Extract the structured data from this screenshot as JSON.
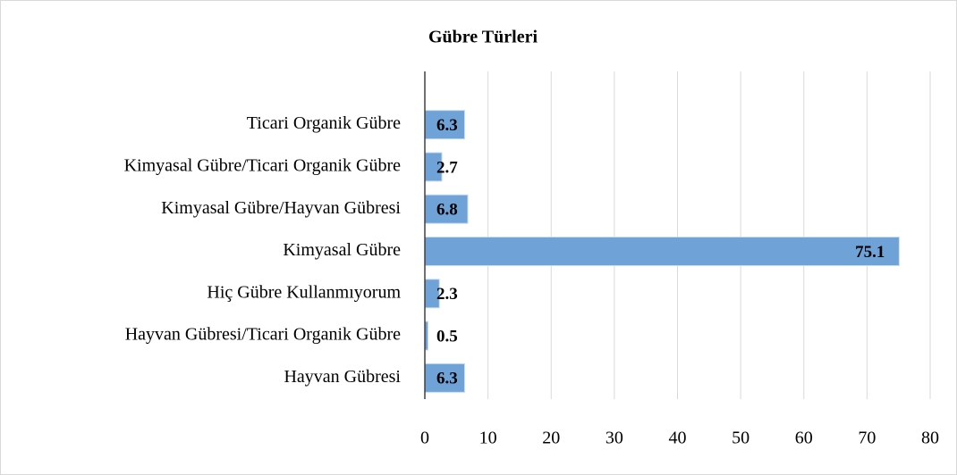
{
  "chart_data": {
    "type": "bar",
    "orientation": "horizontal",
    "title": "Gübre Türleri",
    "categories": [
      "Ticari Organik Gübre",
      "Kimyasal Gübre/Ticari Organik Gübre",
      "Kimyasal Gübre/Hayvan Gübresi",
      "Kimyasal Gübre",
      "Hiç Gübre Kullanmıyorum",
      "Hayvan Gübresi/Ticari Organik Gübre",
      "Hayvan Gübresi"
    ],
    "values": [
      6.3,
      2.7,
      6.8,
      75.1,
      2.3,
      0.5,
      6.3
    ],
    "color": "#6fa3d8",
    "xlim": [
      0,
      80
    ],
    "xticks": [
      0,
      10,
      20,
      30,
      40,
      50,
      60,
      70,
      80
    ],
    "grid": true
  }
}
